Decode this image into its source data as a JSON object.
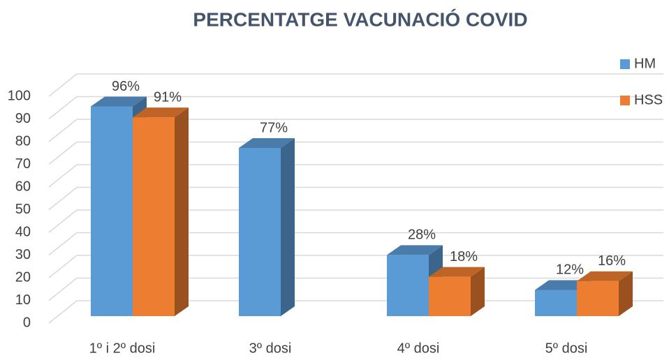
{
  "chart_data": {
    "type": "bar3d",
    "title": "PERCENTATGE VACUNACIÓ COVID",
    "categories": [
      "1º i 2º dosi",
      "3º dosi",
      "4º dosi",
      "5º dosi"
    ],
    "series": [
      {
        "name": "HM",
        "color": "#5b9bd5",
        "values": [
          96,
          77,
          28,
          12
        ],
        "value_labels": [
          "96%",
          "77%",
          "28%",
          "12%"
        ]
      },
      {
        "name": "HSS",
        "color": "#ed7d31",
        "values": [
          91,
          null,
          18,
          16
        ],
        "value_labels": [
          "91%",
          null,
          "18%",
          "16%"
        ]
      }
    ],
    "ylim": [
      0,
      100
    ],
    "yticks": [
      0,
      10,
      20,
      30,
      40,
      50,
      60,
      70,
      80,
      90,
      100
    ],
    "grid": true,
    "legend": "top-right"
  }
}
